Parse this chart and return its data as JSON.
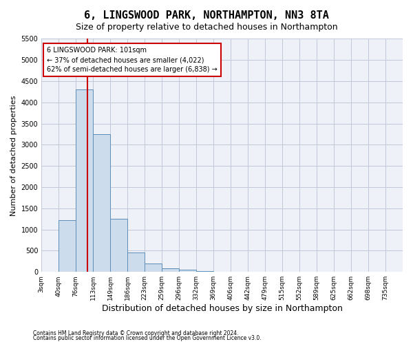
{
  "title": "6, LINGSWOOD PARK, NORTHAMPTON, NN3 8TA",
  "subtitle": "Size of property relative to detached houses in Northampton",
  "xlabel": "Distribution of detached houses by size in Northampton",
  "ylabel": "Number of detached properties",
  "bin_labels": [
    "3sqm",
    "40sqm",
    "76sqm",
    "113sqm",
    "149sqm",
    "186sqm",
    "223sqm",
    "259sqm",
    "296sqm",
    "332sqm",
    "369sqm",
    "406sqm",
    "442sqm",
    "479sqm",
    "515sqm",
    "552sqm",
    "589sqm",
    "625sqm",
    "662sqm",
    "698sqm",
    "735sqm"
  ],
  "bar_values": [
    0,
    1220,
    4300,
    3250,
    1250,
    450,
    200,
    80,
    50,
    20,
    0,
    0,
    0,
    0,
    0,
    0,
    0,
    0,
    0,
    0,
    0
  ],
  "bar_color": "#ccdced",
  "bar_edge_color": "#5b8db8",
  "grid_color": "#c0c8d8",
  "background_color": "#eef2f8",
  "vline_color": "#cc0000",
  "annotation_text": "6 LINGSWOOD PARK: 101sqm\n← 37% of detached houses are smaller (4,022)\n62% of semi-detached houses are larger (6,838) →",
  "annotation_box_color": "#ffffff",
  "annotation_box_edge": "#cc0000",
  "ylim": [
    0,
    5500
  ],
  "yticks": [
    0,
    500,
    1000,
    1500,
    2000,
    2500,
    3000,
    3500,
    4000,
    4500,
    5000,
    5500
  ],
  "footer_line1": "Contains HM Land Registry data © Crown copyright and database right 2024.",
  "footer_line2": "Contains public sector information licensed under the Open Government Licence v3.0.",
  "title_fontsize": 11,
  "subtitle_fontsize": 9,
  "xlabel_fontsize": 9,
  "ylabel_fontsize": 8,
  "property_sqm": 101,
  "bin_edges": [
    3,
    40,
    76,
    113,
    149,
    186,
    223,
    259,
    296,
    332,
    369,
    406,
    442,
    479,
    515,
    552,
    589,
    625,
    662,
    698,
    735
  ]
}
